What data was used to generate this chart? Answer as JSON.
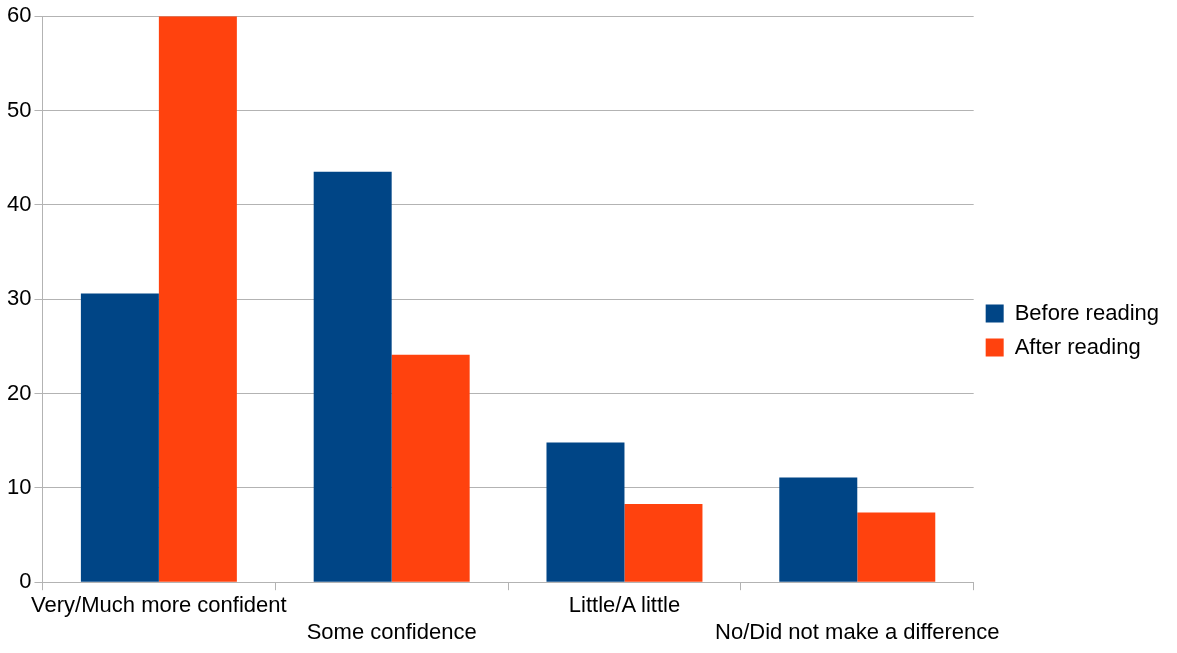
{
  "chart_data": {
    "type": "bar",
    "categories": [
      "Very/Much more confident",
      "Some confidence",
      "Little/A little",
      "No/Did not make a difference"
    ],
    "series": [
      {
        "name": "Before reading",
        "color": "#004586",
        "values": [
          30.6,
          43.5,
          14.8,
          11.1
        ]
      },
      {
        "name": "After reading",
        "color": "#ff420e",
        "values": [
          60,
          24.1,
          8.3,
          7.4
        ]
      }
    ],
    "ylim": [
      0,
      60
    ],
    "yticks": [
      0,
      10,
      20,
      30,
      40,
      50,
      60
    ],
    "grid": "y",
    "legend": "right"
  }
}
